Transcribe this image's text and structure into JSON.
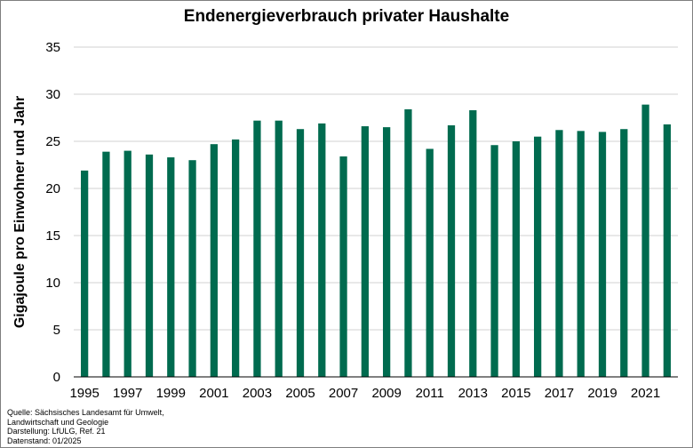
{
  "chart_data": {
    "type": "bar",
    "title": "Endenergieverbrauch privater Haushalte",
    "xlabel": "",
    "ylabel": "Gigajoule pro Einwohner und Jahr",
    "ylim": [
      0,
      35
    ],
    "yticks": [
      0,
      5,
      10,
      15,
      20,
      25,
      30,
      35
    ],
    "grid": true,
    "legend": "none",
    "bar_color": "#006b4f",
    "categories": [
      "1995",
      "1996",
      "1997",
      "1998",
      "1999",
      "2000",
      "2001",
      "2002",
      "2003",
      "2004",
      "2005",
      "2006",
      "2007",
      "2008",
      "2009",
      "2010",
      "2011",
      "2012",
      "2013",
      "2014",
      "2015",
      "2016",
      "2017",
      "2018",
      "2019",
      "2020",
      "2021",
      "2022"
    ],
    "xtick_labels": [
      "1995",
      "1997",
      "1999",
      "2001",
      "2003",
      "2005",
      "2007",
      "2009",
      "2011",
      "2013",
      "2015",
      "2017",
      "2019",
      "2021"
    ],
    "values": [
      21.9,
      23.9,
      24.0,
      23.6,
      23.3,
      23.0,
      24.7,
      25.2,
      27.2,
      27.2,
      26.3,
      26.9,
      23.4,
      26.6,
      26.5,
      28.4,
      24.2,
      26.7,
      28.3,
      24.6,
      25.0,
      25.5,
      26.2,
      26.1,
      26.0,
      26.3,
      28.9,
      26.8
    ]
  },
  "source": {
    "line1": "Quelle:  Sächsisches Landesamt für Umwelt,",
    "line2": "Landwirtschaft und Geologie",
    "line3": "Darstellung:  LfULG, Ref. 21",
    "line4": "Datenstand:  01/2025"
  }
}
